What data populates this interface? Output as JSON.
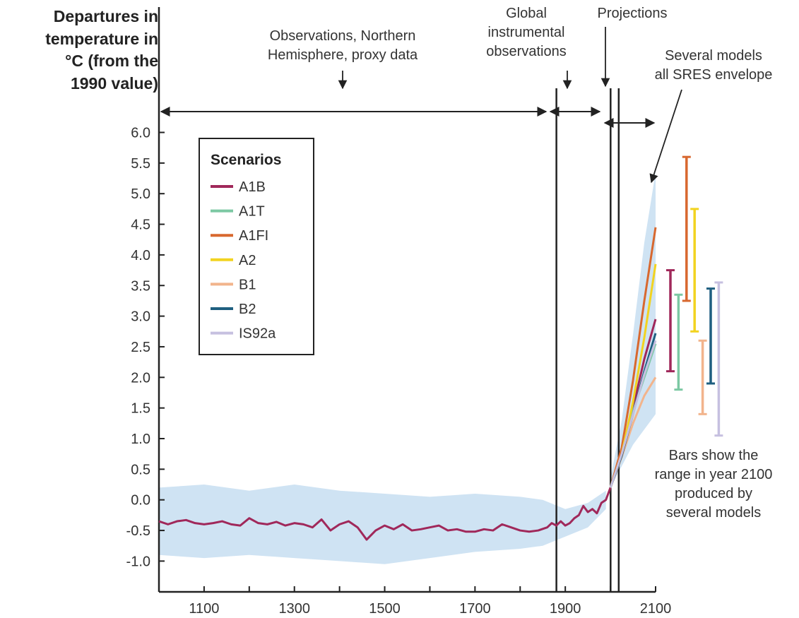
{
  "chart_data": {
    "type": "line",
    "ylabel_lines": [
      "Departures in",
      "temperature in",
      "°C (from the",
      "1990 value)"
    ],
    "xlim": [
      1000,
      2100
    ],
    "ylim": [
      -1.5,
      6.25
    ],
    "x_ticks": [
      "1100",
      "1300",
      "1500",
      "1700",
      "1900",
      "2100"
    ],
    "y_ticks": [
      "6.0",
      "5.5",
      "5.0",
      "4.5",
      "4.0",
      "3.5",
      "3.0",
      "2.5",
      "2.0",
      "1.5",
      "1.0",
      "0.5",
      "0.0",
      "-0.5",
      "-1.0"
    ],
    "annotations": {
      "proxy": [
        "Observations, Northern",
        "Hemisphere, proxy data"
      ],
      "instrumental": [
        "Global",
        "instrumental",
        "observations"
      ],
      "projections": [
        "Projections"
      ],
      "envelope": [
        "Several models",
        "all SRES envelope"
      ],
      "bars_note": [
        "Bars show the",
        "range in year 2100",
        "produced by",
        "several models"
      ]
    },
    "legend": {
      "title": "Scenarios",
      "placement": "top-left"
    },
    "history": {
      "x": [
        1000,
        1020,
        1040,
        1060,
        1080,
        1100,
        1120,
        1140,
        1160,
        1180,
        1200,
        1220,
        1240,
        1260,
        1280,
        1300,
        1320,
        1340,
        1360,
        1380,
        1400,
        1420,
        1440,
        1460,
        1480,
        1500,
        1520,
        1540,
        1560,
        1580,
        1600,
        1620,
        1640,
        1660,
        1680,
        1700,
        1720,
        1740,
        1760,
        1780,
        1800,
        1820,
        1840,
        1860,
        1870,
        1880,
        1890,
        1900,
        1910,
        1920,
        1930,
        1940,
        1950,
        1960,
        1970,
        1980,
        1990,
        2000
      ],
      "y": [
        -0.35,
        -0.4,
        -0.35,
        -0.33,
        -0.38,
        -0.4,
        -0.38,
        -0.35,
        -0.4,
        -0.42,
        -0.3,
        -0.38,
        -0.4,
        -0.36,
        -0.42,
        -0.38,
        -0.4,
        -0.45,
        -0.32,
        -0.5,
        -0.4,
        -0.35,
        -0.45,
        -0.65,
        -0.5,
        -0.42,
        -0.48,
        -0.4,
        -0.5,
        -0.48,
        -0.45,
        -0.42,
        -0.5,
        -0.48,
        -0.52,
        -0.52,
        -0.48,
        -0.5,
        -0.4,
        -0.45,
        -0.5,
        -0.52,
        -0.5,
        -0.45,
        -0.38,
        -0.42,
        -0.35,
        -0.42,
        -0.38,
        -0.3,
        -0.25,
        -0.1,
        -0.2,
        -0.15,
        -0.22,
        -0.05,
        0.0,
        0.2
      ]
    },
    "band": {
      "x": [
        1000,
        1100,
        1200,
        1300,
        1400,
        1500,
        1600,
        1700,
        1800,
        1850,
        1900,
        1950,
        1990
      ],
      "lower": [
        -0.9,
        -0.95,
        -0.9,
        -0.95,
        -1.0,
        -1.05,
        -0.95,
        -0.85,
        -0.8,
        -0.75,
        -0.6,
        -0.45,
        -0.15
      ],
      "upper": [
        0.2,
        0.25,
        0.15,
        0.25,
        0.15,
        0.1,
        0.05,
        0.1,
        0.05,
        0.0,
        -0.15,
        -0.05,
        0.15
      ]
    },
    "envelope": {
      "x": [
        2000,
        2025,
        2050,
        2075,
        2100
      ],
      "lower": [
        0.2,
        0.55,
        0.9,
        1.15,
        1.4
      ],
      "upper": [
        0.35,
        1.3,
        2.7,
        4.2,
        5.35
      ]
    },
    "projection_x": [
      2000,
      2025,
      2050,
      2075,
      2100
    ],
    "series": [
      {
        "name": "A1B",
        "color": "#a0285a",
        "values": [
          0.2,
          0.75,
          1.5,
          2.3,
          2.95
        ],
        "range_2100": [
          2.1,
          3.75
        ]
      },
      {
        "name": "A1T",
        "color": "#7cc8a3",
        "values": [
          0.2,
          0.75,
          1.45,
          2.0,
          2.55
        ],
        "range_2100": [
          1.8,
          3.35
        ]
      },
      {
        "name": "A1FI",
        "color": "#d8682f",
        "values": [
          0.2,
          0.85,
          1.95,
          3.25,
          4.45
        ],
        "range_2100": [
          3.25,
          5.6
        ]
      },
      {
        "name": "A2",
        "color": "#f2d320",
        "values": [
          0.2,
          0.75,
          1.6,
          2.65,
          3.85
        ],
        "range_2100": [
          2.75,
          4.75
        ]
      },
      {
        "name": "B1",
        "color": "#f2b48c",
        "values": [
          0.2,
          0.7,
          1.25,
          1.7,
          2.0
        ],
        "range_2100": [
          1.4,
          2.6
        ]
      },
      {
        "name": "B2",
        "color": "#1f5f80",
        "values": [
          0.2,
          0.72,
          1.4,
          2.1,
          2.72
        ],
        "range_2100": [
          1.9,
          3.45
        ]
      },
      {
        "name": "IS92a",
        "color": "#c6c0e0",
        "values": [
          0.2,
          0.75,
          1.4,
          2.05,
          2.6
        ],
        "range_2100": [
          1.05,
          3.55
        ]
      }
    ]
  }
}
